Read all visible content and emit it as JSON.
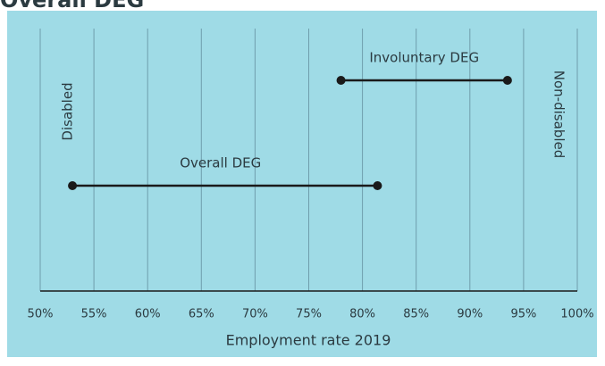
{
  "chart_data": {
    "type": "dumbbell",
    "title": "Overall DEG",
    "xlabel": "Employment rate 2019",
    "series": [
      {
        "name": "Involuntary DEG",
        "color": "#1a1a1a",
        "values": [
          78,
          93.5
        ]
      },
      {
        "name": "Overall DEG",
        "color": "#1a1a1a",
        "values": [
          53,
          81.4
        ]
      }
    ],
    "annotations": [
      "Disabled",
      "Non-disabled"
    ],
    "xlim": [
      50,
      100
    ],
    "xticks": [
      {
        "value": 50,
        "label": "50%"
      },
      {
        "value": 55,
        "label": "55%"
      },
      {
        "value": 60,
        "label": "60%"
      },
      {
        "value": 65,
        "label": "65%"
      },
      {
        "value": 70,
        "label": "70%"
      },
      {
        "value": 75,
        "label": "75%"
      },
      {
        "value": 80,
        "label": "80%"
      },
      {
        "value": 85,
        "label": "85%"
      },
      {
        "value": 90,
        "label": "90%"
      },
      {
        "value": 95,
        "label": "95%"
      },
      {
        "value": 100,
        "label": "100%"
      }
    ],
    "grid": true,
    "background": "#9fdbe6"
  }
}
